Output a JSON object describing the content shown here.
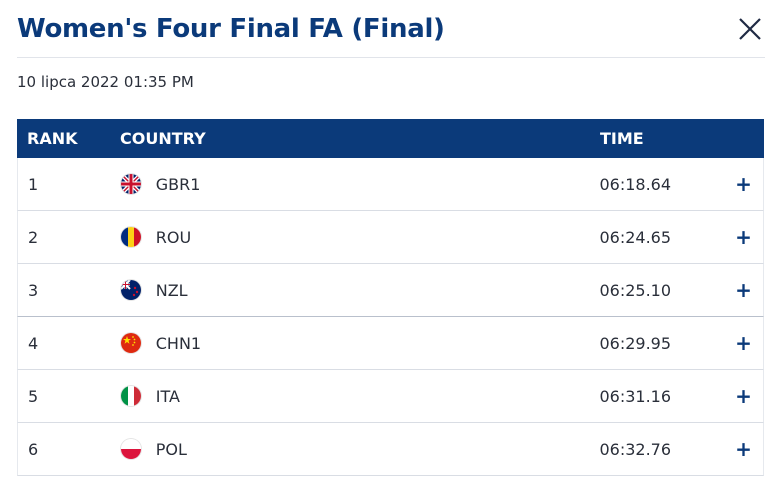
{
  "dialog": {
    "title": "Women's Four Final FA (Final)",
    "date": "10 lipca 2022 01:35 PM",
    "close_icon": "close-icon"
  },
  "table": {
    "headers": {
      "rank": "RANK",
      "country": "COUNTRY",
      "time": "TIME"
    },
    "rows": [
      {
        "rank": "1",
        "country": "GBR1",
        "time": "06:18.64",
        "expand": "+",
        "flag_icon": "flag-gbr-icon"
      },
      {
        "rank": "2",
        "country": "ROU",
        "time": "06:24.65",
        "expand": "+",
        "flag_icon": "flag-rou-icon"
      },
      {
        "rank": "3",
        "country": "NZL",
        "time": "06:25.10",
        "expand": "+",
        "flag_icon": "flag-nzl-icon"
      },
      {
        "rank": "4",
        "country": "CHN1",
        "time": "06:29.95",
        "expand": "+",
        "flag_icon": "flag-chn-icon"
      },
      {
        "rank": "5",
        "country": "ITA",
        "time": "06:31.16",
        "expand": "+",
        "flag_icon": "flag-ita-icon"
      },
      {
        "rank": "6",
        "country": "POL",
        "time": "06:32.76",
        "expand": "+",
        "flag_icon": "flag-pol-icon"
      }
    ]
  },
  "colors": {
    "header_bg": "#0b3a7a",
    "title": "#0b3a7a",
    "row_divider": "#d9dde4"
  }
}
